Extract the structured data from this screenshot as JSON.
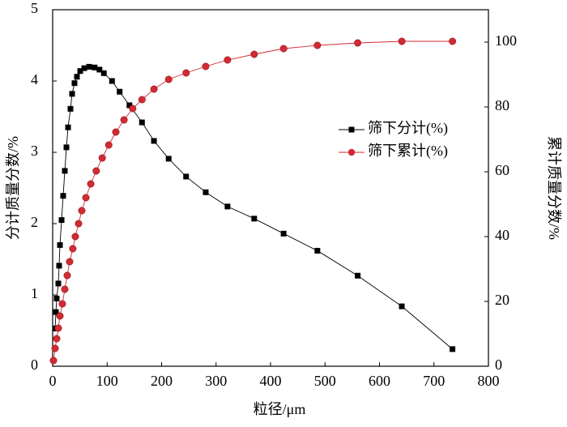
{
  "chart_data": {
    "type": "line",
    "xlabel": "粒径/μm",
    "ylabel": "分计质量分数/%",
    "y2label": "累计质量分数/%",
    "xlim": [
      0,
      800
    ],
    "xticks": [
      0,
      100,
      200,
      300,
      400,
      500,
      600,
      700,
      800
    ],
    "ylim": [
      0,
      5
    ],
    "yticks": [
      0,
      1,
      2,
      3,
      4,
      5
    ],
    "y2lim": [
      0,
      110
    ],
    "y2ticks": [
      0,
      20,
      40,
      60,
      80,
      100
    ],
    "legend": "right",
    "series": [
      {
        "name": "筛下分计(%)",
        "color": "#000000",
        "marker": "square",
        "axis": "y",
        "x": [
          4.5,
          6,
          7.4,
          10.4,
          11.9,
          13.4,
          16.4,
          19.3,
          22.3,
          25.3,
          28.3,
          32.7,
          35.7,
          40.1,
          44.6,
          50.6,
          58,
          67,
          77,
          86,
          94,
          109,
          123,
          141,
          164,
          186,
          213,
          245,
          281,
          321,
          370,
          424,
          486,
          560,
          641,
          734
        ],
        "values": [
          0.53,
          0.76,
          0.95,
          1.16,
          1.41,
          1.7,
          2.05,
          2.39,
          2.74,
          3.07,
          3.35,
          3.61,
          3.82,
          3.97,
          4.06,
          4.14,
          4.18,
          4.2,
          4.19,
          4.16,
          4.11,
          4.0,
          3.85,
          3.66,
          3.42,
          3.16,
          2.91,
          2.66,
          2.44,
          2.24,
          2.07,
          1.86,
          1.62,
          1.27,
          0.84,
          0.24
        ]
      },
      {
        "name": "筛下累计(%)",
        "color": "#d42a33",
        "marker": "circle",
        "axis": "y2",
        "x": [
          1.5,
          4.5,
          7.4,
          10.4,
          13.4,
          17.8,
          22.3,
          26.8,
          31.2,
          37,
          41.6,
          47.6,
          53.5,
          61,
          70,
          80,
          91,
          103,
          116,
          131,
          147,
          164,
          186,
          213,
          245,
          281,
          321,
          370,
          424,
          486,
          560,
          641,
          734
        ],
        "values": [
          1.75,
          5.5,
          8.5,
          11.75,
          15.5,
          19.25,
          23.75,
          28,
          32.25,
          36.25,
          40,
          44,
          48,
          52,
          56.25,
          60.25,
          64.25,
          68.25,
          72.25,
          76,
          79.5,
          82.25,
          85.5,
          88.5,
          90.5,
          92.5,
          94.5,
          96.25,
          98,
          99,
          99.75,
          100.25,
          100.25
        ]
      }
    ]
  }
}
